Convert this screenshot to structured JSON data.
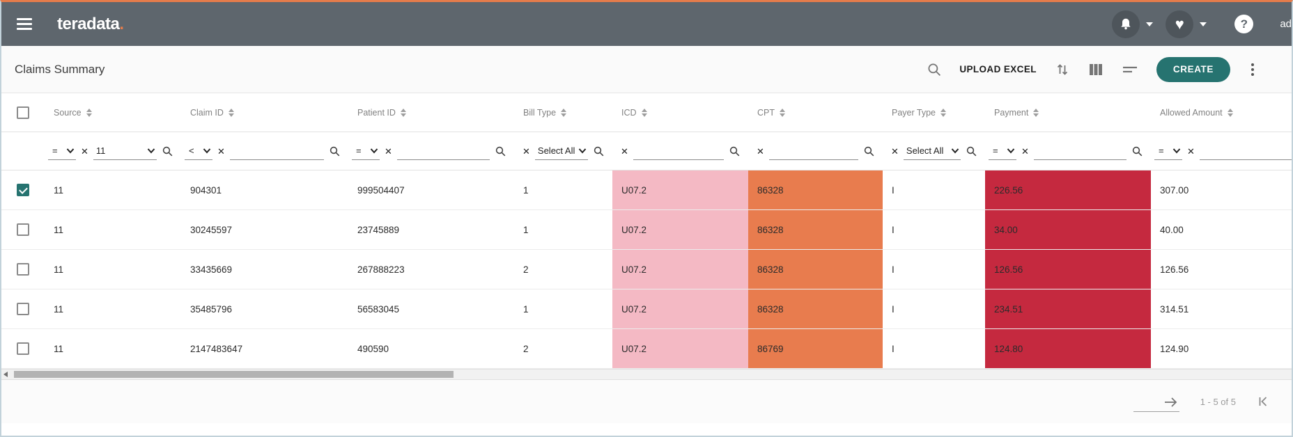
{
  "topbar": {
    "logo_text": "teradata",
    "logo_dot": ".",
    "username": "ad",
    "help_glyph": "?"
  },
  "toolbar": {
    "title": "Claims Summary",
    "upload_label": "UPLOAD EXCEL",
    "create_label": "CREATE"
  },
  "filters": {
    "clear_glyph": "✕"
  },
  "table": {
    "columns": [
      {
        "label": "Source",
        "filter_kind": "operator-select",
        "operator": "=",
        "value": "11"
      },
      {
        "label": "Claim ID",
        "filter_kind": "operator-input",
        "operator": "<",
        "value": ""
      },
      {
        "label": "Patient ID",
        "filter_kind": "operator-input",
        "operator": "=",
        "value": ""
      },
      {
        "label": "Bill Type",
        "filter_kind": "multiselect",
        "value": "Select All"
      },
      {
        "label": "ICD",
        "filter_kind": "plain-input",
        "value": "",
        "cell_bg": "#f4b9c4"
      },
      {
        "label": "CPT",
        "filter_kind": "plain-input",
        "value": "",
        "cell_bg": "#e87c4e"
      },
      {
        "label": "Payer Type",
        "filter_kind": "multiselect",
        "value": "Select All"
      },
      {
        "label": "Payment",
        "filter_kind": "operator-input",
        "operator": "=",
        "value": "",
        "cell_bg": "#c5293f"
      },
      {
        "label": "Allowed Amount",
        "filter_kind": "operator-input",
        "operator": "=",
        "value": ""
      }
    ],
    "rows": [
      {
        "checked": true,
        "cells": [
          "11",
          "904301",
          "999504407",
          "1",
          "U07.2",
          "86328",
          "I",
          "226.56",
          "307.00"
        ]
      },
      {
        "checked": false,
        "cells": [
          "11",
          "30245597",
          "23745889",
          "1",
          "U07.2",
          "86328",
          "I",
          "34.00",
          "40.00"
        ]
      },
      {
        "checked": false,
        "cells": [
          "11",
          "33435669",
          "267888223",
          "2",
          "U07.2",
          "86328",
          "I",
          "126.56",
          "126.56"
        ]
      },
      {
        "checked": false,
        "cells": [
          "11",
          "35485796",
          "56583045",
          "1",
          "U07.2",
          "86328",
          "I",
          "234.51",
          "314.51"
        ]
      },
      {
        "checked": false,
        "cells": [
          "11",
          "2147483647",
          "490590",
          "2",
          "U07.2",
          "86769",
          "I",
          "124.80",
          "124.90"
        ]
      }
    ]
  },
  "pagination": {
    "range_label": "1 - 5 of 5"
  },
  "colors": {
    "accent_orange": "#e57c4b",
    "topbar_gray": "#5e666d",
    "brand_teal": "#267370",
    "cell_pink": "#f4b9c4",
    "cell_orange": "#e87c4e",
    "cell_red": "#c5293f"
  }
}
